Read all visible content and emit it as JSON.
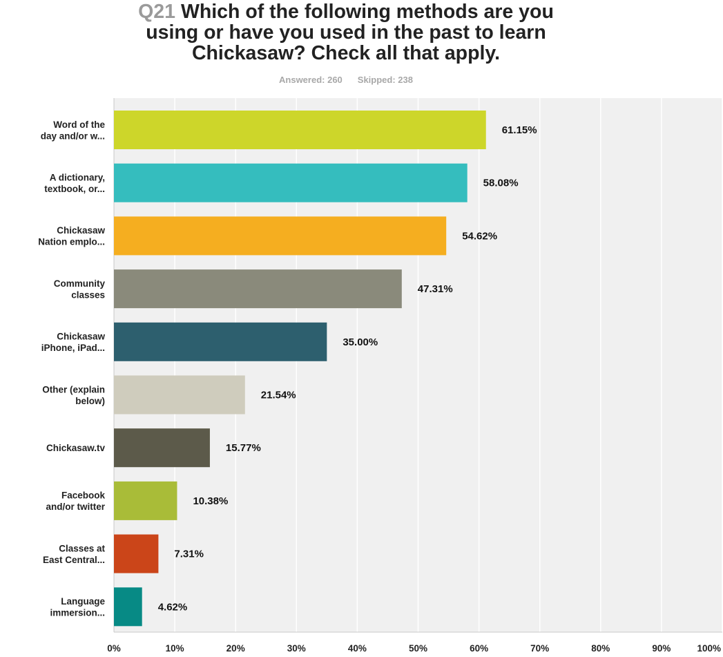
{
  "header": {
    "question_number": "Q21",
    "question_text": "Which of the following methods are you using or have you used in the past to learn Chickasaw? Check all that apply.",
    "title_lines": [
      "Which of the following methods are you",
      "using or have you used in the past to learn",
      "Chickasaw? Check all that apply."
    ],
    "answered": "Answered: 260",
    "skipped": "Skipped: 238"
  },
  "chart_data": {
    "type": "bar",
    "orientation": "horizontal",
    "categories": [
      [
        "Word of the",
        "day and/or w..."
      ],
      [
        "A dictionary,",
        "textbook, or..."
      ],
      [
        "Chickasaw",
        "Nation emplo..."
      ],
      [
        "Community",
        "classes"
      ],
      [
        "Chickasaw",
        "iPhone, iPad..."
      ],
      [
        "Other (explain",
        "below)"
      ],
      [
        "Chickasaw.tv"
      ],
      [
        "Facebook",
        "and/or twitter"
      ],
      [
        "Classes at",
        "East Central..."
      ],
      [
        "Language",
        "immersion..."
      ]
    ],
    "values": [
      61.15,
      58.08,
      54.62,
      47.31,
      35.0,
      21.54,
      15.77,
      10.38,
      7.31,
      4.62
    ],
    "value_labels": [
      "61.15%",
      "58.08%",
      "54.62%",
      "47.31%",
      "35.00%",
      "21.54%",
      "15.77%",
      "10.38%",
      "7.31%",
      "4.62%"
    ],
    "colors": [
      "#cdd62a",
      "#35bdbe",
      "#f5ae20",
      "#8a8a7b",
      "#2d5f6e",
      "#cfccbd",
      "#5c5a4a",
      "#a9bc38",
      "#cb4519",
      "#078a85"
    ],
    "xlim": [
      0,
      100
    ],
    "xticks": [
      0,
      10,
      20,
      30,
      40,
      50,
      60,
      70,
      80,
      90,
      100
    ],
    "xtick_labels": [
      "0%",
      "10%",
      "20%",
      "30%",
      "40%",
      "50%",
      "60%",
      "70%",
      "80%",
      "90%",
      "100%"
    ],
    "grid": true,
    "plot_background": "#f0f0f0"
  }
}
